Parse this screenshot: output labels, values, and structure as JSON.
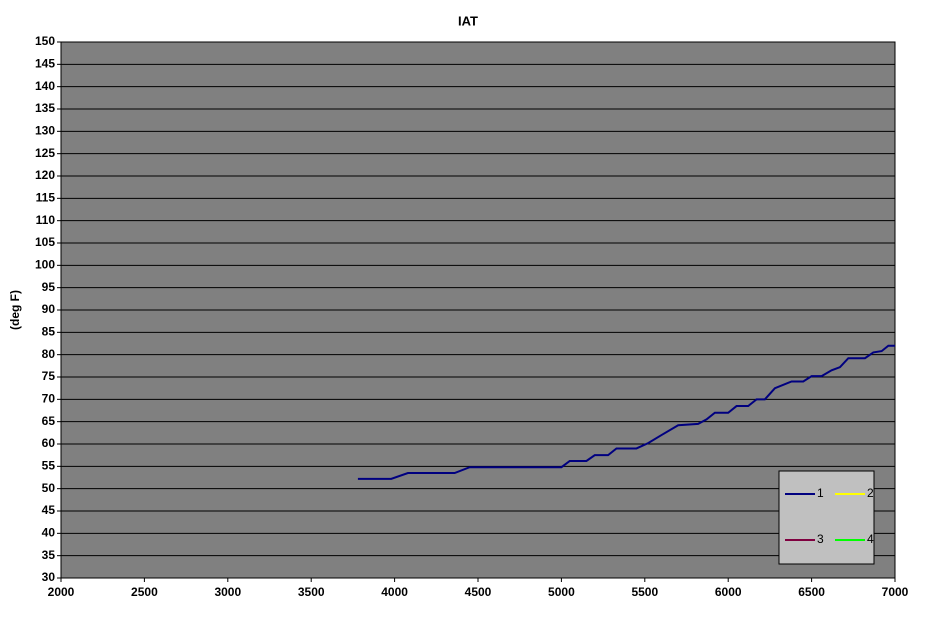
{
  "chart_data": {
    "type": "line",
    "title": "IAT",
    "y_label": "(deg F)",
    "xlim": [
      2000,
      7000
    ],
    "xticks": [
      2000,
      2500,
      3000,
      3500,
      4000,
      4500,
      5000,
      5500,
      6000,
      6500,
      7000
    ],
    "ylim": [
      30,
      150
    ],
    "yticks": [
      30,
      35,
      40,
      45,
      50,
      55,
      60,
      65,
      70,
      75,
      80,
      85,
      90,
      95,
      100,
      105,
      110,
      115,
      120,
      125,
      130,
      135,
      140,
      145,
      150
    ],
    "grid": true,
    "legend": "lower right",
    "series": [
      {
        "name": "1",
        "color": "#000080",
        "x": [
          3780,
          3980,
          4080,
          4360,
          4450,
          5000,
          5050,
          5150,
          5200,
          5280,
          5330,
          5450,
          5520,
          5600,
          5700,
          5820,
          5870,
          5920,
          6000,
          6050,
          6120,
          6170,
          6220,
          6280,
          6380,
          6450,
          6500,
          6560,
          6620,
          6670,
          6720,
          6820,
          6870,
          6920,
          6960,
          7000
        ],
        "values": [
          52.2,
          52.2,
          53.5,
          53.5,
          54.8,
          54.8,
          56.2,
          56.2,
          57.5,
          57.5,
          59,
          59,
          60.2,
          62,
          64.2,
          64.5,
          65.5,
          67,
          67,
          68.5,
          68.5,
          70,
          70,
          72.5,
          74,
          74,
          75.2,
          75.2,
          76.5,
          77.2,
          79.2,
          79.2,
          80.5,
          80.8,
          82,
          82
        ]
      },
      {
        "name": "2",
        "color": "#ffff00",
        "x": [],
        "values": []
      },
      {
        "name": "3",
        "color": "#800040",
        "x": [],
        "values": []
      },
      {
        "name": "4",
        "color": "#00ff00",
        "x": [],
        "values": []
      }
    ]
  }
}
